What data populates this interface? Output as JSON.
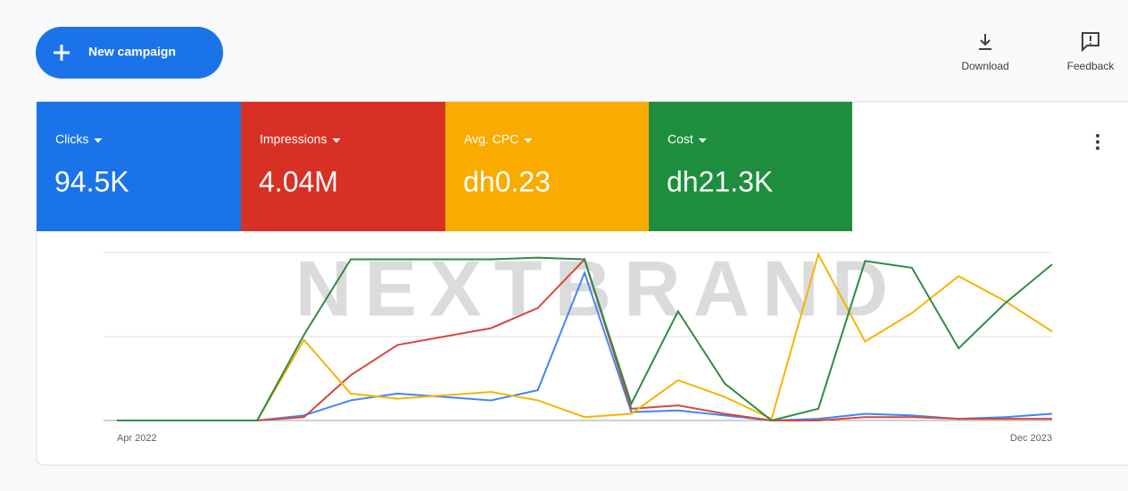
{
  "header": {
    "new_campaign": "New campaign",
    "actions": [
      "Download",
      "Feedback"
    ]
  },
  "watermark": "NEXTBRAND",
  "chart_data": {
    "type": "line",
    "categories": [
      "Apr 2022",
      null,
      null,
      null,
      null,
      null,
      null,
      null,
      null,
      null,
      null,
      null,
      null,
      null,
      null,
      null,
      null,
      null,
      null,
      null,
      "Dec 2023"
    ],
    "ylim": [
      0,
      100
    ],
    "yticks": [
      0,
      50,
      100
    ],
    "grid": true,
    "series": [
      {
        "name": "Clicks",
        "total": "94.5K",
        "color": "#1a73e8",
        "line_color": "#4285f4",
        "values": [
          0,
          0,
          0,
          0,
          3,
          12,
          16,
          14,
          12,
          18,
          88,
          5,
          6,
          3,
          0,
          1,
          4,
          3,
          1,
          2,
          4
        ]
      },
      {
        "name": "Impressions",
        "total": "4.04M",
        "color": "#d93025",
        "line_color": "#d4493a",
        "values": [
          0,
          0,
          0,
          0,
          2,
          27,
          45,
          50,
          55,
          67,
          96,
          7,
          9,
          4,
          0,
          0,
          2,
          2,
          1,
          1,
          1
        ]
      },
      {
        "name": "Avg. CPC",
        "total": "dh0.23",
        "color": "#f9ab00",
        "line_color": "#f6b400",
        "values": [
          0,
          0,
          0,
          0,
          48,
          16,
          13,
          15,
          17,
          12,
          2,
          4,
          24,
          14,
          1,
          99,
          47,
          64,
          86,
          71,
          53
        ]
      },
      {
        "name": "Cost",
        "total": "dh21.3K",
        "color": "#1e8e3e",
        "line_color": "#2e8b46",
        "values": [
          0,
          0,
          0,
          0,
          51,
          96,
          96,
          96,
          96,
          97,
          96,
          10,
          65,
          22,
          0,
          7,
          95,
          91,
          43,
          70,
          93
        ]
      }
    ]
  }
}
